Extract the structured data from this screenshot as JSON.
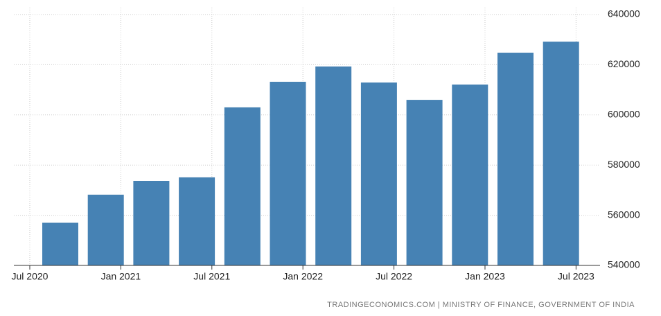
{
  "chart_data": {
    "type": "bar",
    "categories": [
      null,
      null,
      null,
      null,
      null,
      null,
      null,
      null,
      null,
      null,
      null,
      null
    ],
    "values": [
      557000,
      568200,
      573700,
      575100,
      603000,
      613200,
      619300,
      612900,
      606000,
      612100,
      624800,
      629200
    ],
    "color": "#4682b4",
    "xticks": [
      "Jul 2020",
      "Jan 2021",
      "Jul 2021",
      "Jan 2022",
      "Jul 2022",
      "Jan 2023",
      "Jul 2023"
    ],
    "ylim": [
      540000,
      640000
    ],
    "yticks": [
      540000,
      560000,
      580000,
      600000,
      620000,
      640000
    ],
    "grid": true,
    "source": "TRADINGECONOMICS.COM | MINISTRY OF FINANCE, GOVERNMENT OF INDIA"
  }
}
